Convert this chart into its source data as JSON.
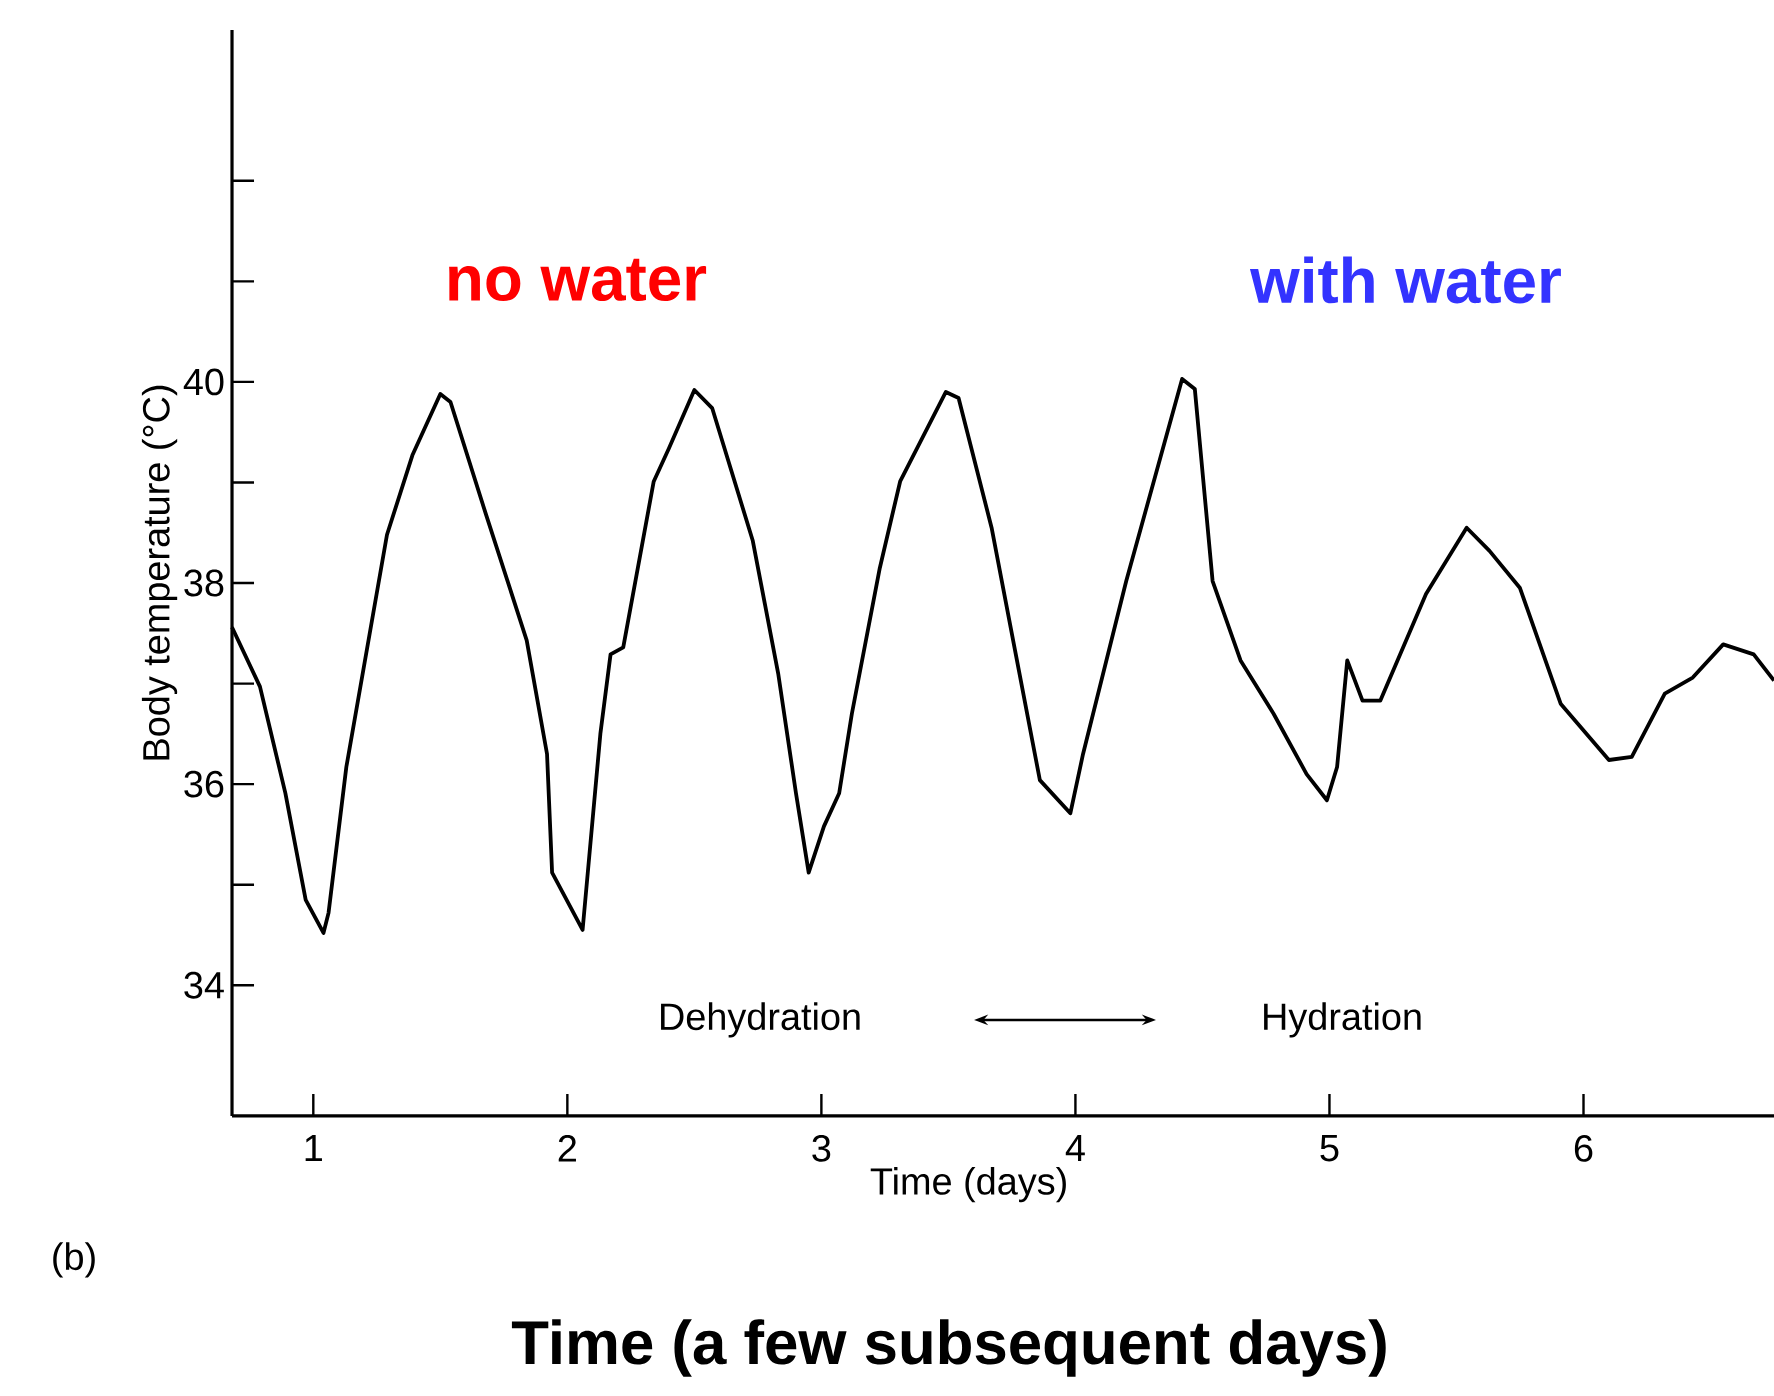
{
  "chart_data": {
    "type": "line",
    "xlabel": "Time (days)",
    "ylabel": "Body temperature (°C)",
    "annotations": [
      "no water",
      "with water",
      "Dehydration",
      "Hydration",
      "(b)",
      "Time (a few subsequent days)"
    ],
    "xlim": [
      0.68,
      6.75
    ],
    "ylim": [
      32.7,
      43.5
    ],
    "xticks": [
      1,
      2,
      3,
      4,
      5,
      6
    ],
    "yticks": [
      {
        "value": 34,
        "label": "34"
      },
      {
        "value": 35,
        "label": null
      },
      {
        "value": 36,
        "label": "36"
      },
      {
        "value": 37,
        "label": null
      },
      {
        "value": 38,
        "label": "38"
      },
      {
        "value": 39,
        "label": null
      },
      {
        "value": 40,
        "label": "40"
      },
      {
        "value": 41,
        "label": null
      },
      {
        "value": 42,
        "label": null
      }
    ],
    "grid": false,
    "marker": "none",
    "line_style": "solid",
    "series": [
      {
        "color": "#000000",
        "x": [
          0.68,
          0.79,
          0.89,
          0.97,
          1.04,
          1.06,
          1.13,
          1.29,
          1.39,
          1.5,
          1.54,
          1.68,
          1.84,
          1.92,
          1.94,
          2.06,
          2.13,
          2.17,
          2.22,
          2.34,
          2.4,
          2.5,
          2.57,
          2.73,
          2.83,
          2.9,
          2.95,
          3.01,
          3.07,
          3.12,
          3.23,
          3.31,
          3.49,
          3.54,
          3.67,
          3.86,
          3.98,
          4.03,
          4.2,
          4.42,
          4.47,
          4.54,
          4.65,
          4.78,
          4.91,
          4.99,
          5.03,
          5.07,
          5.13,
          5.2,
          5.38,
          5.54,
          5.63,
          5.75,
          5.91,
          6.1,
          6.19,
          6.32,
          6.43,
          6.55,
          6.67,
          6.75
        ],
        "values": [
          37.56,
          36.97,
          35.91,
          34.85,
          34.52,
          34.72,
          36.17,
          38.48,
          39.27,
          39.88,
          39.8,
          38.68,
          37.43,
          36.3,
          35.12,
          34.55,
          36.5,
          37.29,
          37.36,
          39.01,
          39.34,
          39.92,
          39.74,
          38.42,
          37.1,
          35.91,
          35.12,
          35.58,
          35.91,
          36.7,
          38.15,
          39.01,
          39.9,
          39.84,
          38.55,
          36.04,
          35.71,
          36.3,
          38.02,
          40.03,
          39.93,
          38.02,
          37.23,
          36.7,
          36.1,
          35.84,
          36.17,
          37.23,
          36.83,
          36.83,
          37.89,
          38.55,
          38.32,
          37.95,
          36.8,
          36.24,
          36.27,
          36.9,
          37.06,
          37.39,
          37.29,
          37.03
        ]
      }
    ]
  }
}
